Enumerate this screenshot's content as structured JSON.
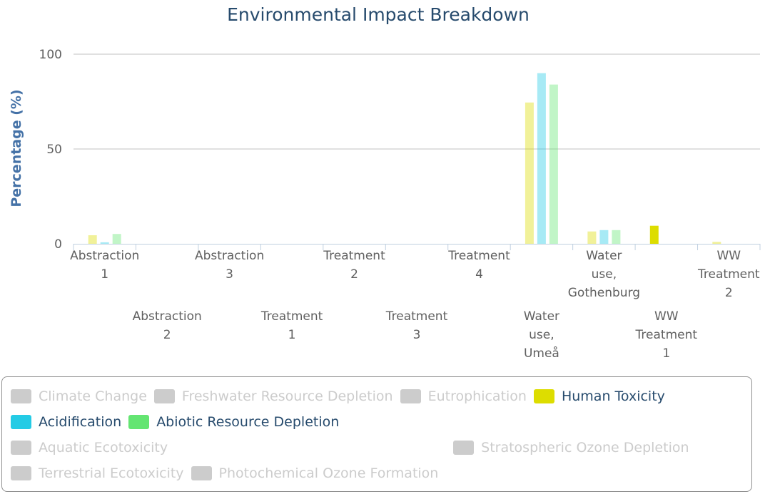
{
  "chart_data": {
    "type": "bar",
    "title": "Environmental Impact Breakdown",
    "ylabel": "Percentage (%)",
    "ylim": [
      0,
      100
    ],
    "yticks": [
      0,
      50,
      100
    ],
    "grid": true,
    "legend_position": "bottom",
    "categories": [
      [
        "Abstraction",
        "1"
      ],
      [
        "Abstraction",
        "2"
      ],
      [
        "Abstraction",
        "3"
      ],
      [
        "Treatment",
        "1"
      ],
      [
        "Treatment",
        "2"
      ],
      [
        "Treatment",
        "3"
      ],
      [
        "Treatment",
        "4"
      ],
      [
        "Water",
        "use,",
        "Umeå"
      ],
      [
        "Water",
        "use,",
        "Gothenburg"
      ],
      [
        "WW",
        "Treatment",
        "1"
      ],
      [
        "WW",
        "Treatment",
        "2"
      ]
    ],
    "series": [
      {
        "name": "Human Toxicity",
        "color": "#dddd00",
        "visible": true,
        "values": [
          4.5,
          0,
          0,
          0,
          0,
          0,
          0,
          74.5,
          6.5,
          9.5,
          1.0
        ]
      },
      {
        "name": "Acidification",
        "color": "#24cbe5",
        "visible": true,
        "values": [
          0.8,
          0,
          0,
          0,
          0,
          0,
          0,
          90,
          7.2,
          0,
          0
        ]
      },
      {
        "name": "Abiotic Resource Depletion",
        "color": "#64e572",
        "visible": true,
        "values": [
          5.2,
          0,
          0,
          0,
          0,
          0,
          0,
          84,
          7.2,
          0,
          0
        ]
      }
    ]
  },
  "legend": [
    {
      "name": "Climate Change",
      "visible": false,
      "color": "#cccccc"
    },
    {
      "name": "Freshwater Resource Depletion",
      "visible": false,
      "color": "#cccccc"
    },
    {
      "name": "Eutrophication",
      "visible": false,
      "color": "#cccccc"
    },
    {
      "name": "Human Toxicity",
      "visible": true,
      "color": "#dddd00"
    },
    {
      "name": "Acidification",
      "visible": true,
      "color": "#24cbe5"
    },
    {
      "name": "Abiotic Resource Depletion",
      "visible": true,
      "color": "#64e572"
    },
    {
      "name": "Aquatic Ecotoxicity",
      "visible": false,
      "color": "#cccccc"
    },
    {
      "name": "Stratospheric Ozone Depletion",
      "visible": false,
      "color": "#cccccc"
    },
    {
      "name": "Terrestrial Ecotoxicity",
      "visible": false,
      "color": "#cccccc"
    },
    {
      "name": "Photochemical Ozone Formation",
      "visible": false,
      "color": "#cccccc"
    }
  ]
}
